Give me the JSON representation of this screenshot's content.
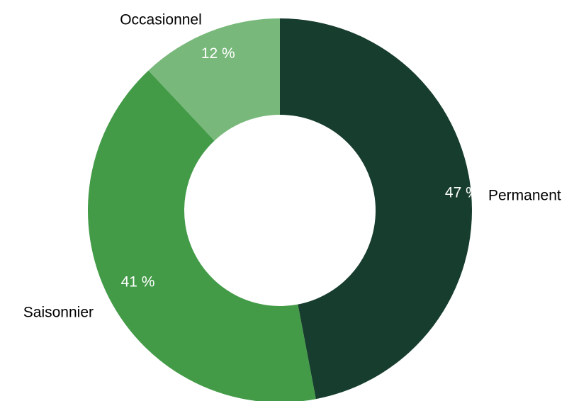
{
  "chart_data": {
    "type": "pie",
    "variant": "donut",
    "title": "",
    "legend": "none",
    "unit": "%",
    "slices": [
      {
        "label": "Permanent",
        "value": 47,
        "value_label": "47 %",
        "color": "#173d2e"
      },
      {
        "label": "Saisonnier",
        "value": 41,
        "value_label": "41 %",
        "color": "#439b48"
      },
      {
        "label": "Occasionnel",
        "value": 12,
        "value_label": "12 %",
        "color": "#78b87a"
      }
    ],
    "start_angle_deg": 0,
    "direction": "clockwise"
  }
}
